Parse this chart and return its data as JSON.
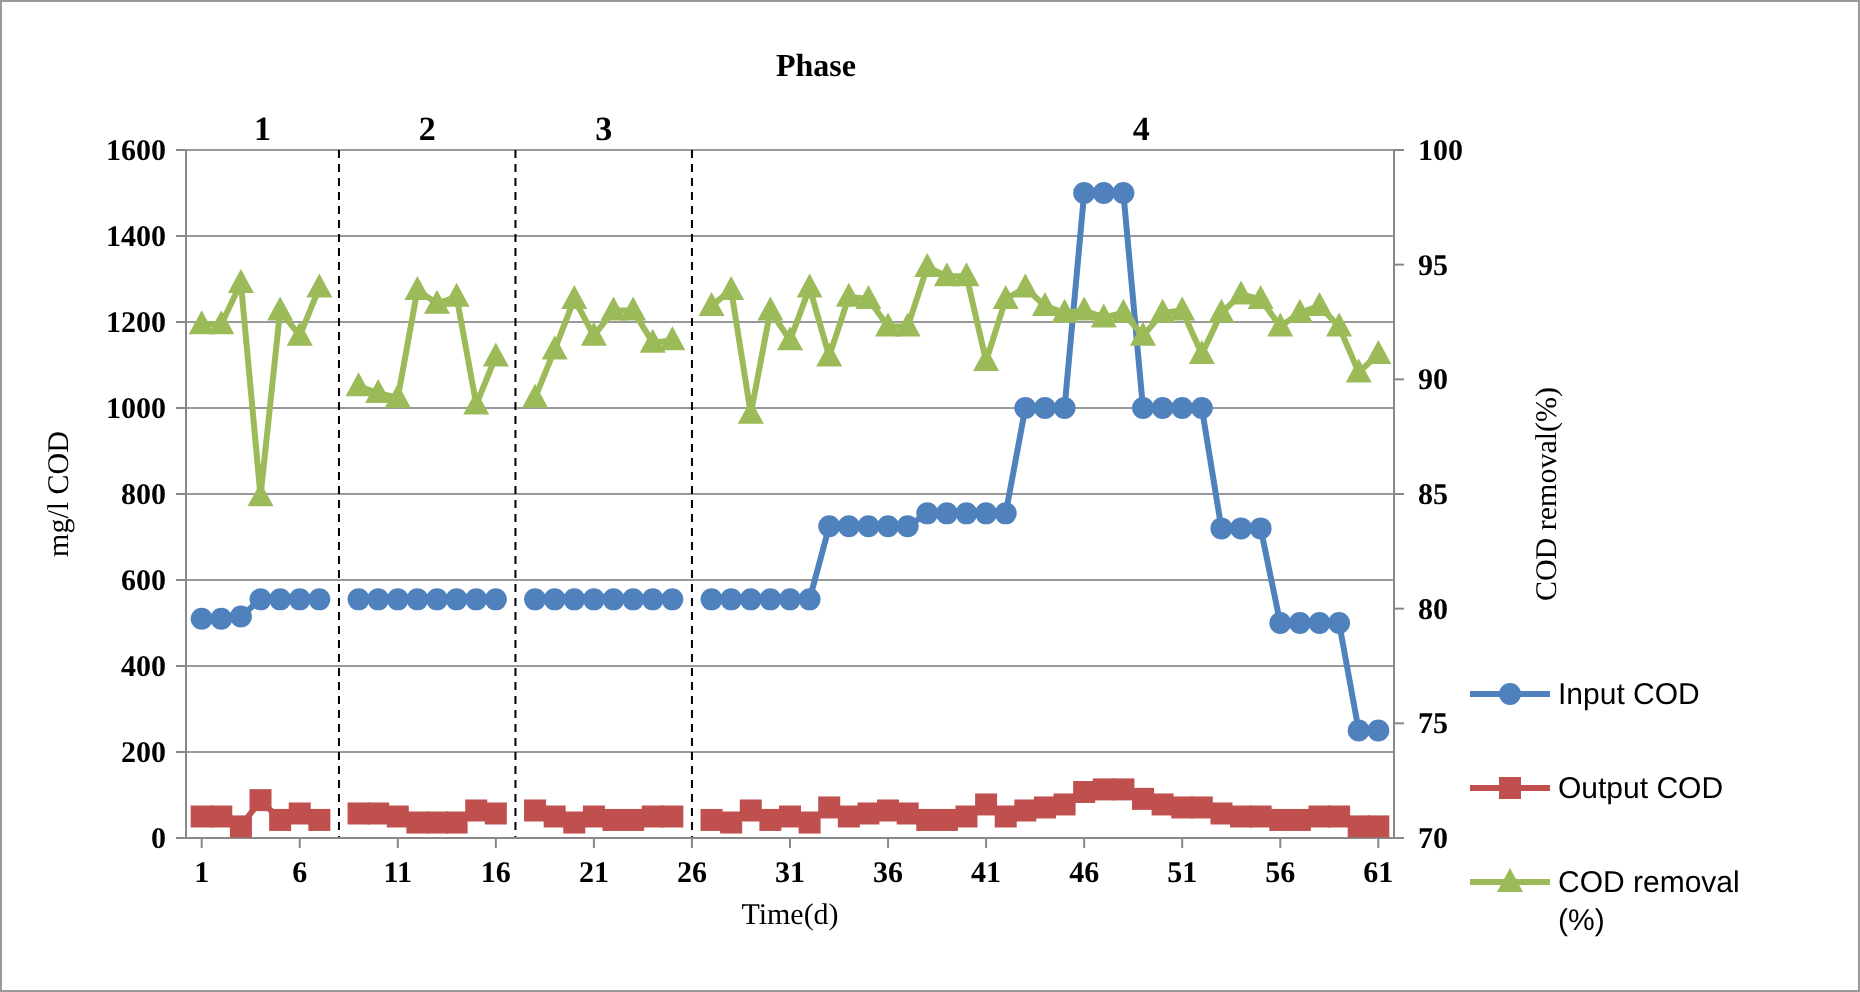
{
  "chart_data": {
    "type": "line",
    "title": "Phase",
    "xlabel": "Time(d)",
    "ylabel": "mg/l COD",
    "y2label": "COD removal(%)",
    "x": [
      1,
      2,
      3,
      4,
      5,
      6,
      7,
      8,
      9,
      10,
      11,
      12,
      13,
      14,
      15,
      16,
      17,
      18,
      19,
      20,
      21,
      22,
      23,
      24,
      25,
      26,
      27,
      28,
      29,
      30,
      31,
      32,
      33,
      34,
      35,
      36,
      37,
      38,
      39,
      40,
      41,
      42,
      43,
      44,
      45,
      46,
      47,
      48,
      49,
      50,
      51,
      52,
      53,
      54,
      55,
      56,
      57,
      58,
      59,
      60,
      61
    ],
    "xlim": [
      0.2,
      61.8
    ],
    "xticks": [
      1,
      6,
      11,
      16,
      21,
      26,
      31,
      36,
      41,
      46,
      51,
      56,
      61
    ],
    "ylim": [
      0,
      1600
    ],
    "yticks": [
      0,
      200,
      400,
      600,
      800,
      1000,
      1200,
      1400,
      1600
    ],
    "y2lim": [
      70,
      100
    ],
    "y2ticks": [
      70,
      75,
      80,
      85,
      90,
      95,
      100
    ],
    "grid": "y",
    "legend": "right",
    "series": [
      {
        "name": "Input COD",
        "color": "#4f81bd",
        "marker": "circle",
        "values": [
          510,
          510,
          515,
          555,
          555,
          555,
          555,
          null,
          555,
          555,
          555,
          555,
          555,
          555,
          555,
          555,
          null,
          555,
          555,
          555,
          555,
          555,
          555,
          555,
          555,
          null,
          555,
          555,
          555,
          555,
          555,
          555,
          725,
          725,
          725,
          725,
          725,
          755,
          755,
          755,
          755,
          755,
          1000,
          1000,
          1000,
          1500,
          1500,
          1500,
          1000,
          1000,
          1000,
          1000,
          720,
          720,
          720,
          500,
          500,
          500,
          500,
          250,
          250
        ]
      },
      {
        "name": "Output COD",
        "color": "#c0504d",
        "marker": "square",
        "values": [
          50,
          50,
          27,
          88,
          42,
          57,
          42,
          null,
          57,
          57,
          50,
          36,
          36,
          36,
          64,
          57,
          null,
          64,
          50,
          36,
          50,
          42,
          42,
          50,
          50,
          null,
          42,
          36,
          64,
          42,
          50,
          36,
          71,
          50,
          57,
          64,
          57,
          42,
          42,
          50,
          78,
          50,
          64,
          71,
          78,
          107,
          113,
          113,
          91,
          78,
          71,
          71,
          57,
          50,
          50,
          42,
          42,
          50,
          50,
          27,
          27
        ]
      },
      {
        "name": "COD removal (%)",
        "color": "#9bbb59",
        "marker": "triangle",
        "axis": "y2",
        "values": [
          92.4,
          92.4,
          94.2,
          84.9,
          93.0,
          91.9,
          94.0,
          null,
          89.7,
          89.4,
          89.2,
          93.9,
          93.3,
          93.6,
          88.9,
          91.0,
          null,
          89.2,
          91.3,
          93.5,
          91.9,
          93.0,
          93.0,
          91.6,
          91.7,
          null,
          93.2,
          93.9,
          88.5,
          93.0,
          91.7,
          94.0,
          91.0,
          93.6,
          93.5,
          92.3,
          92.3,
          94.9,
          94.5,
          94.5,
          90.8,
          93.5,
          94.0,
          93.2,
          92.9,
          93.0,
          92.7,
          92.9,
          91.9,
          92.9,
          93.0,
          91.1,
          92.9,
          93.7,
          93.5,
          92.3,
          92.9,
          93.2,
          92.3,
          90.3,
          91.1
        ]
      }
    ],
    "ref_lines": [
      {
        "axis": "x",
        "value": 8,
        "line_style": "dashed",
        "color": "#000000"
      },
      {
        "axis": "x",
        "value": 17,
        "line_style": "dashed",
        "color": "#000000"
      },
      {
        "axis": "x",
        "value": 26,
        "line_style": "dashed",
        "color": "#000000"
      }
    ],
    "annotations": [
      "1",
      "2",
      "3",
      "4"
    ]
  }
}
